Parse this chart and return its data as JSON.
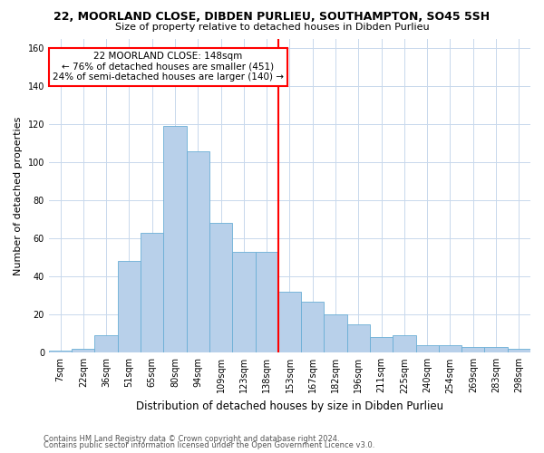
{
  "title": "22, MOORLAND CLOSE, DIBDEN PURLIEU, SOUTHAMPTON, SO45 5SH",
  "subtitle": "Size of property relative to detached houses in Dibden Purlieu",
  "xlabel": "Distribution of detached houses by size in Dibden Purlieu",
  "ylabel": "Number of detached properties",
  "footer1": "Contains HM Land Registry data © Crown copyright and database right 2024.",
  "footer2": "Contains public sector information licensed under the Open Government Licence v3.0.",
  "annotation_line1": "22 MOORLAND CLOSE: 148sqm",
  "annotation_line2": "← 76% of detached houses are smaller (451)",
  "annotation_line3": "24% of semi-detached houses are larger (140) →",
  "property_size_bin": 10,
  "bar_color": "#b8d0ea",
  "bar_edge_color": "#6aaed6",
  "vline_color": "red",
  "background_color": "#ffffff",
  "grid_color": "#c8d8ec",
  "categories": [
    "7sqm",
    "22sqm",
    "36sqm",
    "51sqm",
    "65sqm",
    "80sqm",
    "94sqm",
    "109sqm",
    "123sqm",
    "138sqm",
    "153sqm",
    "167sqm",
    "182sqm",
    "196sqm",
    "211sqm",
    "225sqm",
    "240sqm",
    "254sqm",
    "269sqm",
    "283sqm",
    "298sqm"
  ],
  "values": [
    1,
    2,
    9,
    48,
    63,
    119,
    106,
    68,
    53,
    53,
    32,
    27,
    20,
    15,
    8,
    9,
    4,
    4,
    3,
    3,
    2
  ],
  "ylim": [
    0,
    165
  ],
  "yticks": [
    0,
    20,
    40,
    60,
    80,
    100,
    120,
    140,
    160
  ],
  "title_fontsize": 9,
  "subtitle_fontsize": 8,
  "ylabel_fontsize": 8,
  "xlabel_fontsize": 8.5,
  "tick_fontsize": 7,
  "annotation_fontsize": 7.5,
  "footer_fontsize": 6
}
